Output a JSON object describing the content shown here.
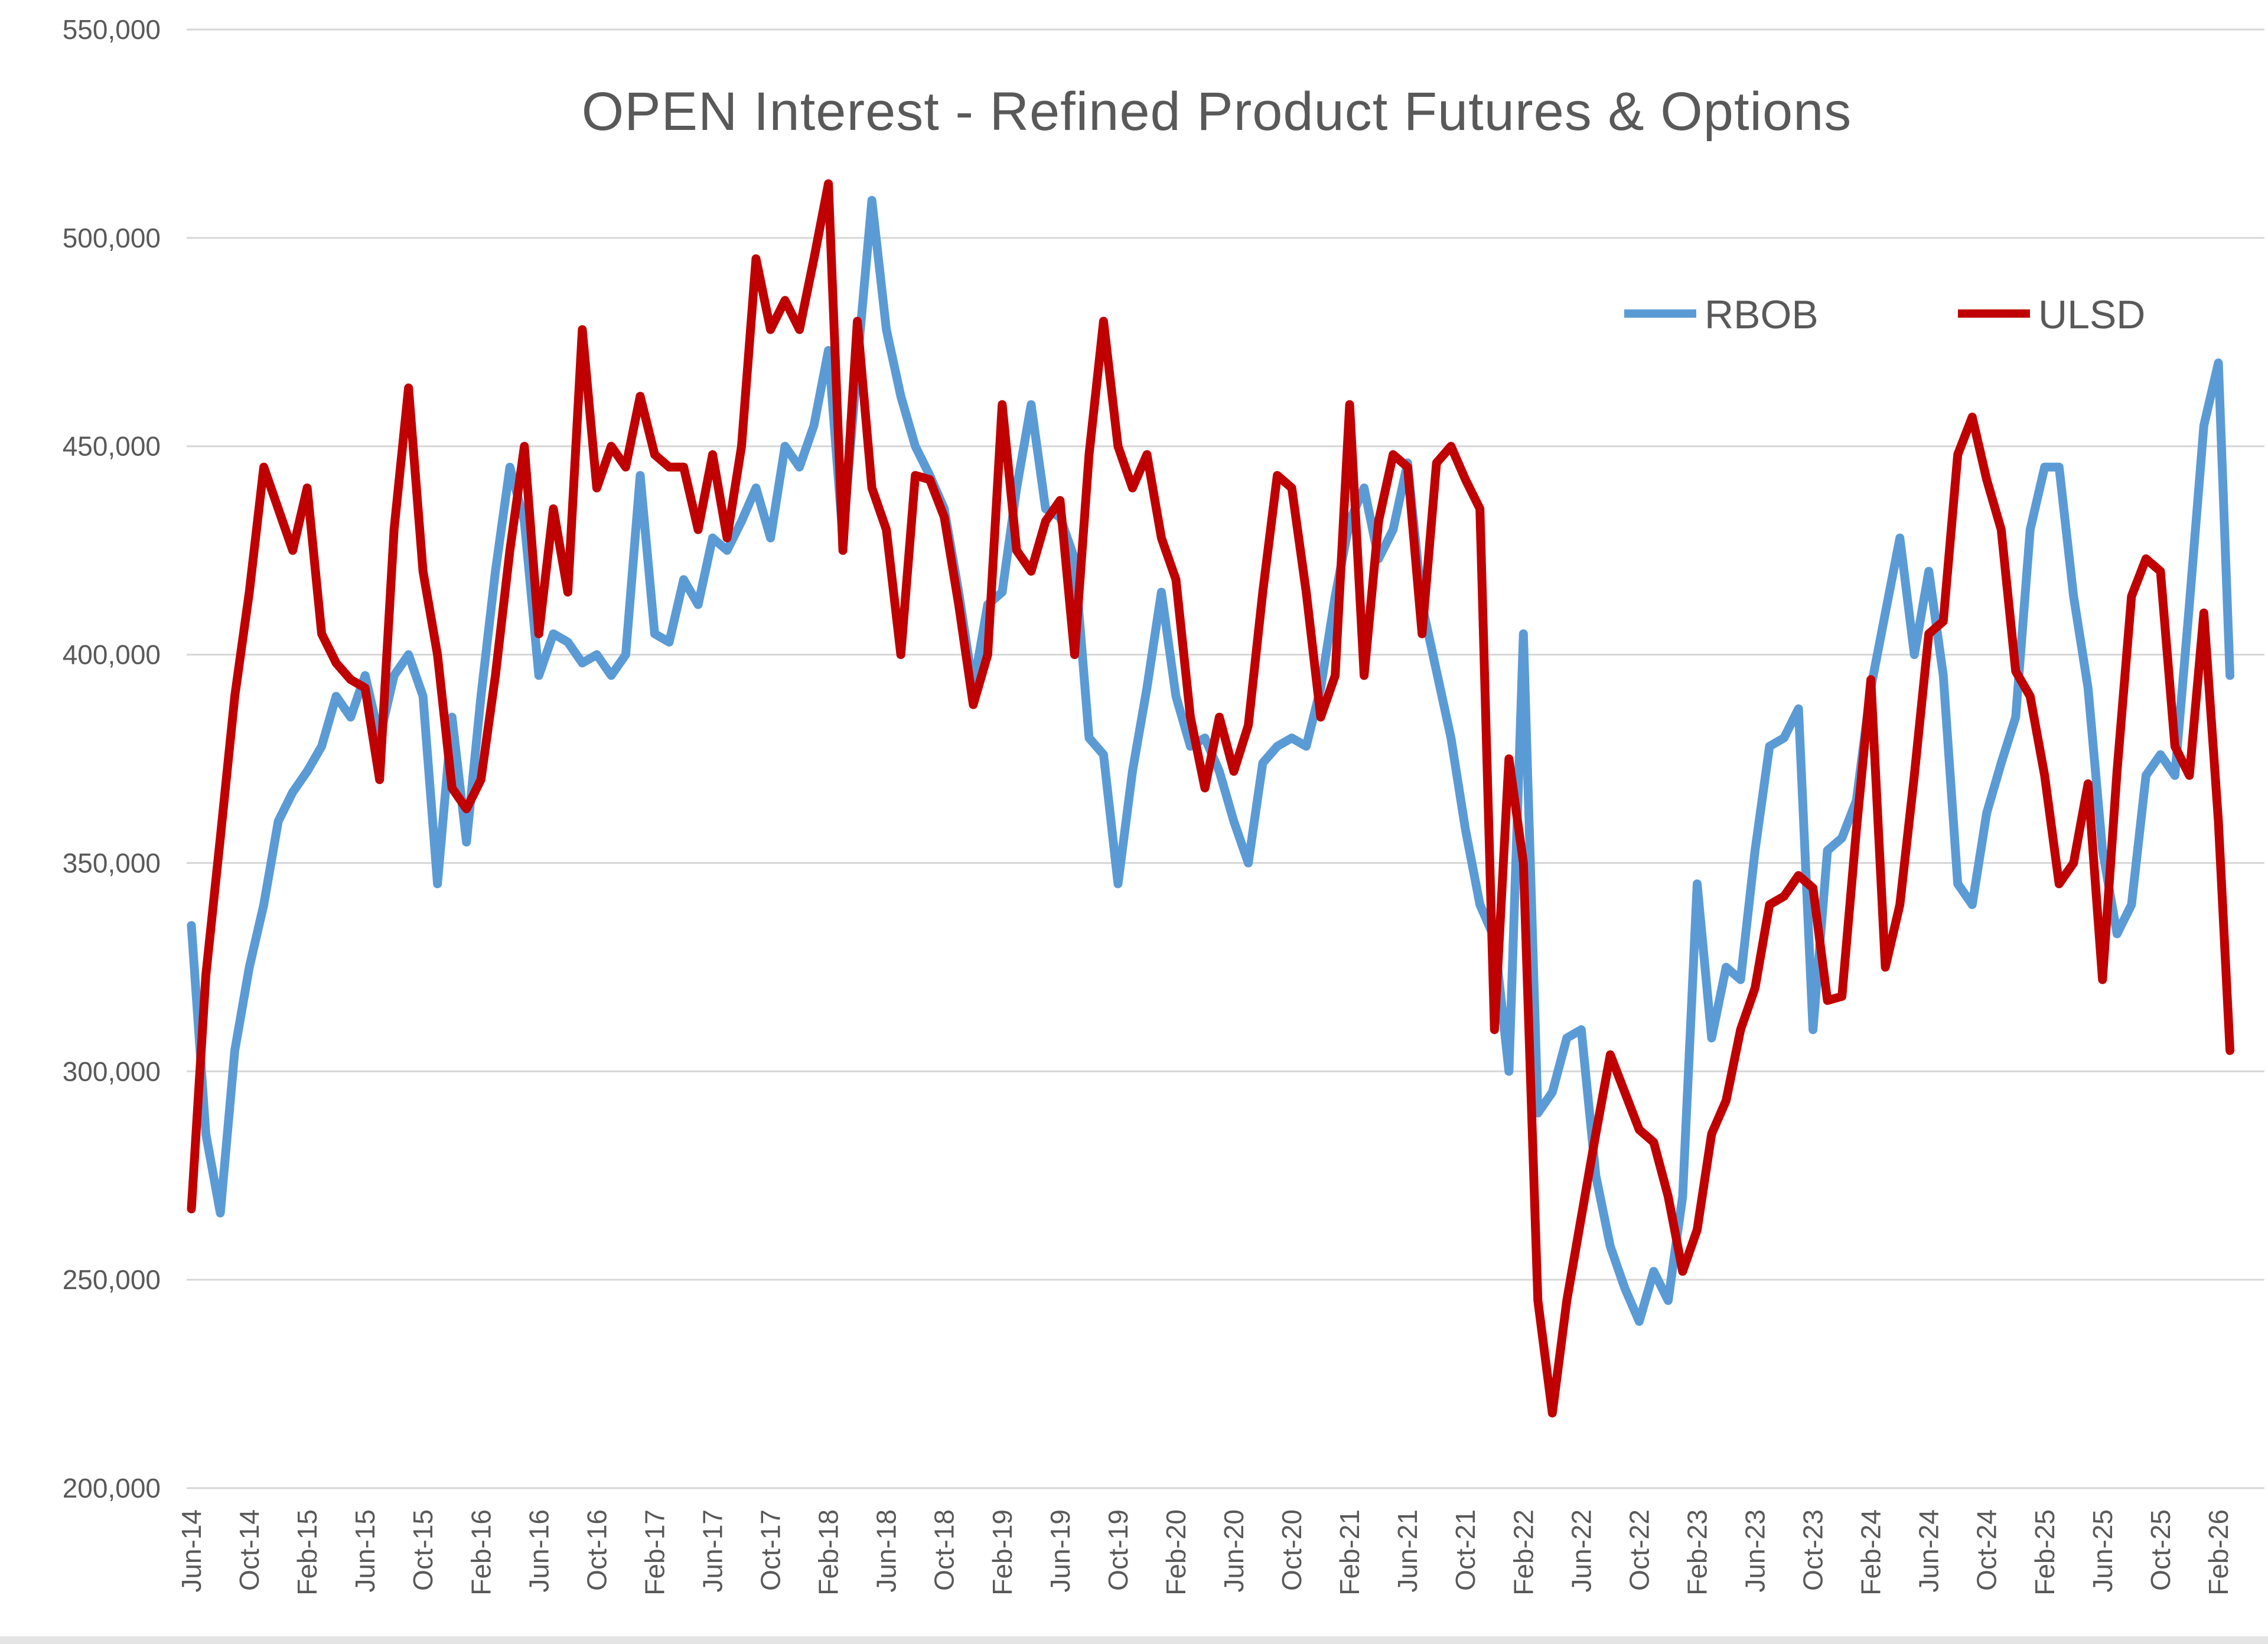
{
  "window": {
    "background": "#FFFFFF",
    "bottom_edge_color": "#E4E4E4"
  },
  "chart_data": {
    "type": "line",
    "title": "OPEN Interest - Refined Product Futures & Options",
    "title_color": "#595959",
    "axis_text_color": "#595959",
    "gridline_color": "#D6D6D6",
    "grid": true,
    "plot_background": "#FFFFFF",
    "y_axis": {
      "min": 200000,
      "max": 550000,
      "step": 50000,
      "tick_labels_top_to_bottom": [
        "550,000",
        "500,000",
        "450,000",
        "400,000",
        "350,000",
        "300,000",
        "250,000",
        "200,000"
      ],
      "tick_values_top_to_bottom": [
        550000,
        500000,
        450000,
        400000,
        350000,
        300000,
        250000,
        200000
      ]
    },
    "x_axis": {
      "tick_labels": [
        "Jun-14",
        "Oct-14",
        "Feb-15",
        "Jun-15",
        "Oct-15",
        "Feb-16",
        "Jun-16",
        "Oct-16",
        "Feb-17",
        "Jun-17",
        "Oct-17",
        "Feb-18",
        "Jun-18",
        "Oct-18",
        "Feb-19",
        "Jun-19",
        "Oct-19",
        "Feb-20",
        "Jun-20",
        "Oct-20",
        "Feb-21",
        "Jun-21",
        "Oct-21",
        "Feb-22",
        "Jun-22",
        "Oct-22",
        "Feb-23",
        "Jun-23",
        "Oct-23",
        "Feb-24",
        "Jun-24",
        "Oct-24",
        "Feb-25",
        "Jun-25",
        "Oct-25",
        "Feb-26"
      ],
      "months_per_tick": 4,
      "points_cadence": "monthly estimates read from weekly line, Jun-2014 through Feb-2026 plus final end-of-series point",
      "x_index_of_last_tick": 140,
      "x_index_of_final_point": 140.8
    },
    "legend": {
      "position": "top-right",
      "entries": [
        {
          "label": "RBOB",
          "color": "#5B9BD5"
        },
        {
          "label": "ULSD",
          "color": "#C00000"
        }
      ]
    },
    "series": [
      {
        "name": "RBOB",
        "color": "#5B9BD5",
        "values": [
          335000,
          285000,
          266000,
          305000,
          325000,
          340000,
          360000,
          367000,
          372000,
          378000,
          390000,
          385000,
          395000,
          380000,
          395000,
          400000,
          390000,
          345000,
          385000,
          355000,
          390000,
          420000,
          445000,
          432000,
          395000,
          405000,
          403000,
          398000,
          400000,
          395000,
          400000,
          443000,
          405000,
          403000,
          418000,
          412000,
          428000,
          425000,
          432000,
          440000,
          428000,
          450000,
          445000,
          455000,
          473000,
          428000,
          470000,
          509000,
          478000,
          462000,
          450000,
          443000,
          435000,
          415000,
          392000,
          412000,
          415000,
          440000,
          460000,
          435000,
          433000,
          423000,
          380000,
          376000,
          345000,
          372000,
          392000,
          415000,
          390000,
          378000,
          380000,
          372000,
          360000,
          350000,
          374000,
          378000,
          380000,
          378000,
          392000,
          414000,
          432000,
          440000,
          423000,
          430000,
          446000,
          412000,
          396000,
          380000,
          358000,
          340000,
          332000,
          300000,
          405000,
          290000,
          295000,
          308000,
          310000,
          275000,
          258000,
          248000,
          240000,
          252000,
          245000,
          270000,
          345000,
          308000,
          325000,
          322000,
          353000,
          378000,
          380000,
          387000,
          310000,
          353000,
          356000,
          365000,
          392000,
          410000,
          428000,
          400000,
          420000,
          395000,
          345000,
          340000,
          362000,
          374000,
          385000,
          430000,
          445000,
          445000,
          414000,
          392000,
          353000,
          333000,
          340000,
          371000,
          376000,
          371000,
          412000,
          455000,
          470000,
          395000
        ]
      },
      {
        "name": "ULSD",
        "color": "#C00000",
        "values": [
          267000,
          323000,
          356000,
          390000,
          415000,
          445000,
          435000,
          425000,
          440000,
          405000,
          398000,
          394000,
          392000,
          370000,
          430000,
          464000,
          420000,
          400000,
          368000,
          363000,
          370000,
          395000,
          425000,
          450000,
          405000,
          435000,
          415000,
          478000,
          440000,
          450000,
          445000,
          462000,
          448000,
          445000,
          445000,
          430000,
          448000,
          428000,
          450000,
          495000,
          478000,
          485000,
          478000,
          495000,
          513000,
          425000,
          480000,
          440000,
          430000,
          400000,
          443000,
          442000,
          433000,
          412000,
          388000,
          400000,
          460000,
          425000,
          420000,
          432000,
          437000,
          400000,
          448000,
          480000,
          450000,
          440000,
          448000,
          428000,
          418000,
          385000,
          368000,
          385000,
          372000,
          383000,
          415000,
          443000,
          440000,
          415000,
          385000,
          395000,
          460000,
          395000,
          432000,
          448000,
          445000,
          405000,
          446000,
          450000,
          442000,
          435000,
          310000,
          375000,
          350000,
          245000,
          218000,
          245000,
          265000,
          285000,
          304000,
          295000,
          286000,
          283000,
          270000,
          252000,
          262000,
          285000,
          293000,
          310000,
          320000,
          340000,
          342000,
          347000,
          344000,
          317000,
          318000,
          358000,
          394000,
          325000,
          340000,
          371000,
          405000,
          408000,
          448000,
          457000,
          442000,
          430000,
          396000,
          390000,
          371000,
          345000,
          350000,
          369000,
          322000,
          372000,
          414000,
          423000,
          420000,
          378000,
          371000,
          410000,
          360000,
          305000
        ]
      }
    ]
  }
}
